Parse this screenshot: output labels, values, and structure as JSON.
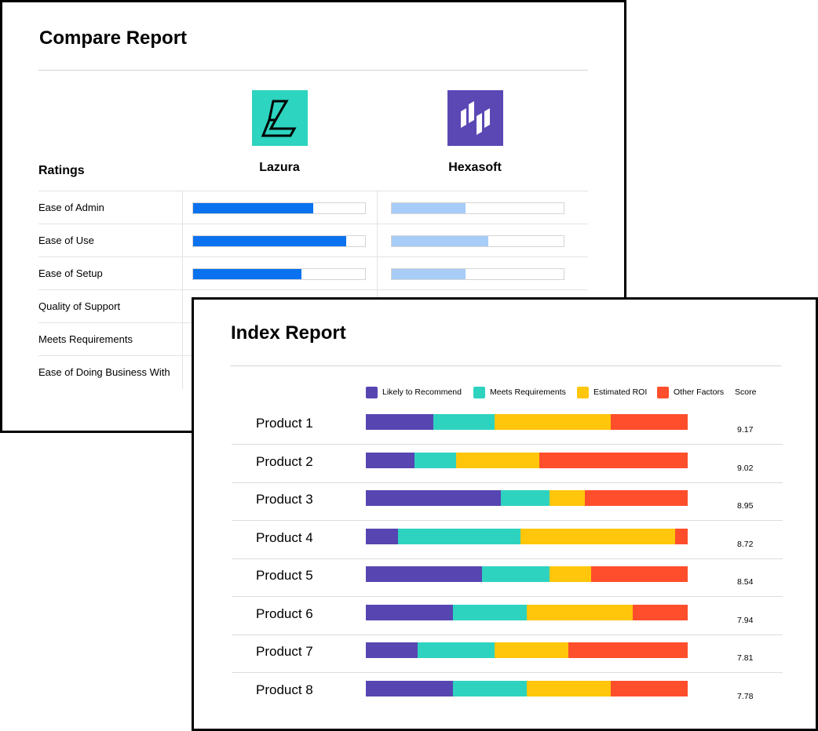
{
  "compare_report": {
    "title": "Compare Report",
    "ratings_label": "Ratings",
    "vendors": [
      {
        "name": "Lazura",
        "logo": "lazura-logo",
        "logo_bg": "#2dd4bf",
        "bar_color": "#0a72ee"
      },
      {
        "name": "Hexasoft",
        "logo": "hexasoft-logo",
        "logo_bg": "#5b48b5",
        "bar_color": "#a6ccf7"
      }
    ],
    "rows": [
      {
        "label": "Ease of Admin",
        "values": [
          0.7,
          0.43
        ]
      },
      {
        "label": "Ease of Use",
        "values": [
          0.89,
          0.56
        ]
      },
      {
        "label": "Ease of Setup",
        "values": [
          0.63,
          0.43
        ]
      },
      {
        "label": "Quality of Support",
        "values": [
          null,
          null
        ]
      },
      {
        "label": "Meets Requirements",
        "values": [
          null,
          null
        ]
      },
      {
        "label": "Ease of Doing Business With",
        "values": [
          null,
          null
        ]
      }
    ]
  },
  "chart_data": {
    "type": "bar",
    "orientation": "horizontal",
    "stacked": true,
    "normalized": true,
    "title": "Index Report",
    "categories": [
      "Product 1",
      "Product 2",
      "Product 3",
      "Product 4",
      "Product 5",
      "Product 6",
      "Product 7",
      "Product 8"
    ],
    "series": [
      {
        "name": "Likely to Recommend",
        "color": "#5746b2",
        "values": [
          0.21,
          0.15,
          0.42,
          0.1,
          0.36,
          0.27,
          0.16,
          0.27
        ]
      },
      {
        "name": "Meets Requirements",
        "color": "#2ed3bf",
        "values": [
          0.19,
          0.13,
          0.15,
          0.38,
          0.21,
          0.23,
          0.24,
          0.23
        ]
      },
      {
        "name": "Estimated ROI",
        "color": "#ffc60b",
        "values": [
          0.36,
          0.26,
          0.11,
          0.48,
          0.13,
          0.33,
          0.23,
          0.26
        ]
      },
      {
        "name": "Other Factors",
        "color": "#ff4e2c",
        "values": [
          0.24,
          0.46,
          0.32,
          0.04,
          0.3,
          0.17,
          0.37,
          0.24
        ]
      }
    ],
    "score_label": "Score",
    "scores": [
      "9.17",
      "9.02",
      "8.95",
      "8.72",
      "8.54",
      "7.94",
      "7.81",
      "7.78"
    ],
    "legend": "top",
    "grid": false
  }
}
